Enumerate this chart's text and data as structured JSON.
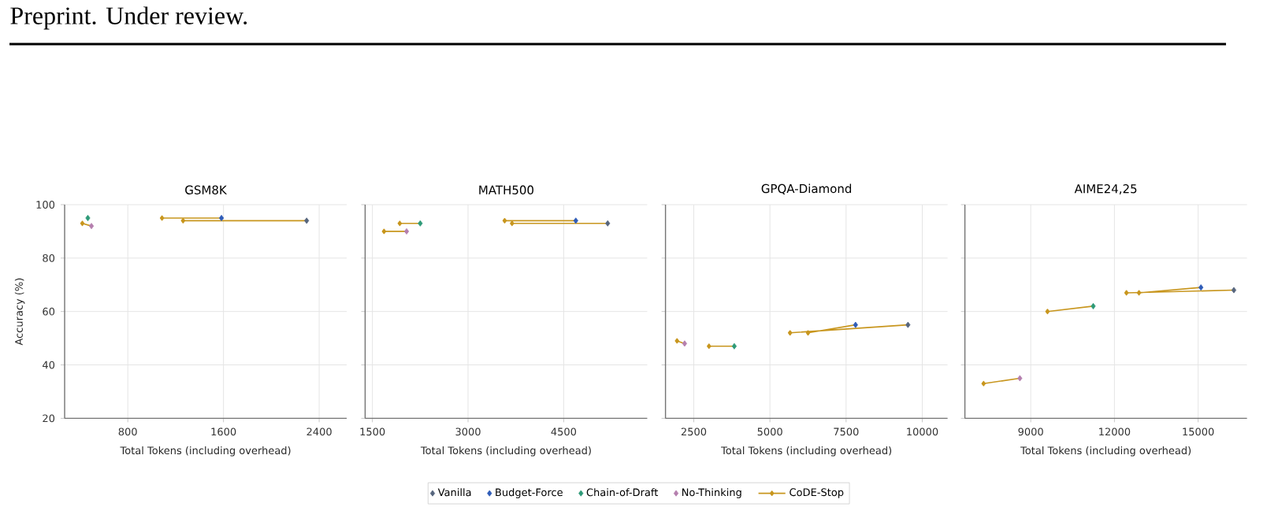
{
  "chart_data": [
    {
      "type": "scatter",
      "title": "GSM8K",
      "xlabel": "Total Tokens (including overhead)",
      "ylabel": "Accuracy (%)",
      "annotations": [
        "Preprint. Under review."
      ],
      "xlim": [
        272,
        2630
      ],
      "ylim": [
        20,
        100
      ],
      "xticks": [
        800,
        1600,
        2400
      ],
      "yticks": [
        20,
        40,
        60,
        80,
        100
      ],
      "grid": true,
      "marker": "diamond",
      "legend": false,
      "series": [
        {
          "color": "#56657d",
          "x": [
            2295
          ],
          "values": [
            94
          ]
        },
        {
          "color": "#2f5cb8",
          "x": [
            1583
          ],
          "values": [
            95
          ]
        },
        {
          "color": "#2e9a78",
          "x": [
            466
          ],
          "values": [
            95
          ]
        },
        {
          "color": "#b57fae",
          "x": [
            496
          ],
          "values": [
            92
          ]
        },
        {
          "type": "line",
          "color": "#c8961e",
          "x": [
            2295,
            1262,
            null,
            1583,
            1086,
            null,
            496,
            420
          ],
          "values": [
            94,
            94,
            null,
            95,
            95,
            null,
            92,
            93
          ]
        }
      ]
    },
    {
      "type": "scatter",
      "title": "MATH500",
      "xlabel": "Total Tokens (including overhead)",
      "xlim": [
        1386,
        5810
      ],
      "ylim": [
        20,
        100
      ],
      "xticks": [
        1500,
        3000,
        4500
      ],
      "yticks": [
        20,
        40,
        60,
        80,
        100
      ],
      "grid": true,
      "marker": "diamond",
      "tick_labels": "x",
      "legend": "bottom",
      "series": [
        {
          "name": "Vanilla",
          "color": "#56657d",
          "x": [
            5190
          ],
          "values": [
            93
          ]
        },
        {
          "name": "Budget-Force",
          "color": "#2f5cb8",
          "x": [
            4690
          ],
          "values": [
            94
          ]
        },
        {
          "name": "Chain-of-Draft",
          "color": "#2e9a78",
          "x": [
            2250
          ],
          "values": [
            93
          ]
        },
        {
          "name": "No-Thinking",
          "color": "#b57fae",
          "x": [
            2036
          ],
          "values": [
            90
          ]
        },
        {
          "name": "CoDE-Stop",
          "type": "line",
          "color": "#c8961e",
          "x": [
            5190,
            3690,
            null,
            4690,
            3574,
            null,
            2250,
            1929,
            null,
            2036,
            1682
          ],
          "values": [
            93,
            93,
            null,
            94,
            94,
            null,
            93,
            93,
            null,
            90,
            90
          ]
        }
      ]
    },
    {
      "type": "scatter",
      "title": "GPQA-Diamond",
      "xlabel": "Total Tokens (including overhead)",
      "xlim": [
        1572,
        10830
      ],
      "ylim": [
        20,
        100
      ],
      "xticks": [
        2500,
        5000,
        7500,
        10000
      ],
      "yticks": [
        20,
        40,
        60,
        80,
        100
      ],
      "grid": true,
      "marker": "diamond",
      "tick_labels": "x",
      "legend": false,
      "series": [
        {
          "color": "#56657d",
          "x": [
            9530
          ],
          "values": [
            55
          ]
        },
        {
          "color": "#2f5cb8",
          "x": [
            7810
          ],
          "values": [
            55
          ]
        },
        {
          "color": "#2e9a78",
          "x": [
            3830
          ],
          "values": [
            47
          ]
        },
        {
          "color": "#b57fae",
          "x": [
            2200
          ],
          "values": [
            48
          ]
        },
        {
          "type": "line",
          "color": "#c8961e",
          "x": [
            9530,
            5660,
            null,
            7810,
            6250,
            null,
            3830,
            3000,
            null,
            2200,
            1950
          ],
          "values": [
            55,
            52,
            null,
            55,
            52,
            null,
            47,
            47,
            null,
            48,
            49
          ]
        }
      ]
    },
    {
      "type": "scatter",
      "title": "AIME24,25",
      "xlabel": "Total Tokens (including overhead)",
      "xlim": [
        6640,
        16750
      ],
      "ylim": [
        20,
        100
      ],
      "xticks": [
        9000,
        12000,
        15000
      ],
      "yticks": [
        20,
        40,
        60,
        80,
        100
      ],
      "grid": true,
      "marker": "diamond",
      "tick_labels": "x",
      "legend": false,
      "series": [
        {
          "color": "#56657d",
          "x": [
            16280
          ],
          "values": [
            68
          ]
        },
        {
          "color": "#2f5cb8",
          "x": [
            15100
          ],
          "values": [
            69
          ]
        },
        {
          "color": "#2e9a78",
          "x": [
            11240
          ],
          "values": [
            62
          ]
        },
        {
          "color": "#b57fae",
          "x": [
            8610
          ],
          "values": [
            35
          ]
        },
        {
          "type": "line",
          "color": "#c8961e",
          "x": [
            16280,
            12430,
            null,
            15100,
            12880,
            null,
            11240,
            9600,
            null,
            8610,
            7310
          ],
          "values": [
            68,
            67,
            null,
            69,
            67,
            null,
            62,
            60,
            null,
            35,
            33
          ]
        }
      ]
    }
  ]
}
